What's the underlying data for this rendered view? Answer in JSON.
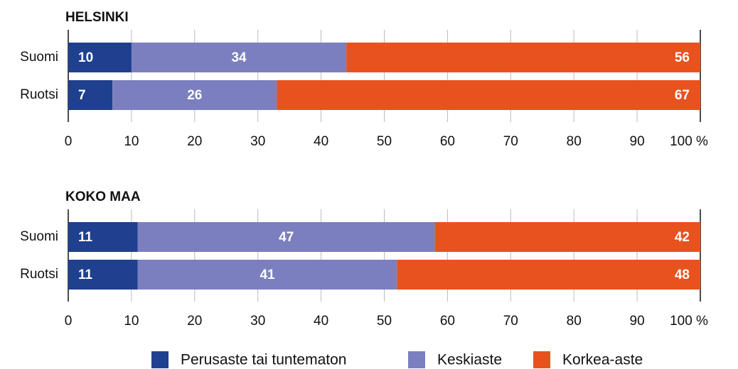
{
  "chart_data": [
    {
      "type": "stacked-barh",
      "title": "HELSINKI",
      "categories": [
        "Suomi",
        "Ruotsi"
      ],
      "series": [
        {
          "name": "Perusaste tai tuntematon",
          "color": "#1f3f8f",
          "values": [
            10,
            7
          ]
        },
        {
          "name": "Keskiaste",
          "color": "#7b7fbf",
          "values": [
            34,
            26
          ]
        },
        {
          "name": "Korkea-aste",
          "color": "#e8521e",
          "values": [
            56,
            67
          ]
        }
      ],
      "xlim": [
        0,
        100
      ],
      "xticks": [
        0,
        10,
        20,
        30,
        40,
        50,
        60,
        70,
        80,
        90,
        {
          "value": 100,
          "label": "100 %"
        }
      ]
    },
    {
      "type": "stacked-barh",
      "title": "KOKO MAA",
      "categories": [
        "Suomi",
        "Ruotsi"
      ],
      "series": [
        {
          "color": "#1f3f8f",
          "values": [
            11,
            11
          ]
        },
        {
          "color": "#7b7fbf",
          "values": [
            47,
            41
          ]
        },
        {
          "color": "#e8521e",
          "values": [
            42,
            48
          ]
        }
      ],
      "xlim": [
        0,
        100
      ],
      "xticks": [
        0,
        10,
        20,
        30,
        40,
        50,
        60,
        70,
        80,
        90,
        {
          "value": 100,
          "label": "100 %"
        }
      ]
    }
  ]
}
